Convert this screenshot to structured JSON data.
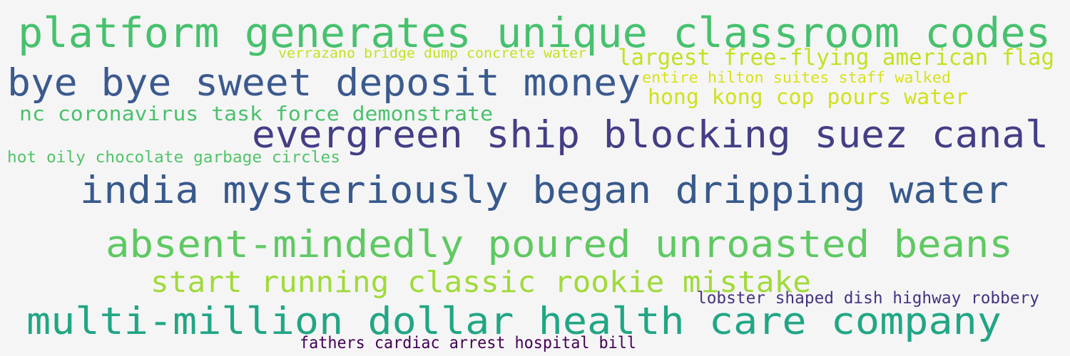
{
  "phrases": [
    {
      "text": "platform generates unique classroom codes",
      "color": "#47c16e"
    },
    {
      "text": "verrazano bridge dump concrete water",
      "color": "#c5e021"
    },
    {
      "text": "largest free-flying american flag",
      "color": "#c5e021"
    },
    {
      "text": "bye bye sweet deposit money",
      "color": "#3b5a8e"
    },
    {
      "text": "entire hilton suites staff walked",
      "color": "#d8e219"
    },
    {
      "text": "hong kong cop pours water",
      "color": "#d0e11c"
    },
    {
      "text": "nc coronavirus task force demonstrate",
      "color": "#4ac16d"
    },
    {
      "text": "evergreen ship blocking suez canal",
      "color": "#433e85"
    },
    {
      "text": "hot oily chocolate garbage circles",
      "color": "#50c46a"
    },
    {
      "text": "india mysteriously began dripping water",
      "color": "#38598c"
    },
    {
      "text": "absent-mindedly poured unroasted beans",
      "color": "#5ec962"
    },
    {
      "text": "start running classic rookie mistake",
      "color": "#a0da39"
    },
    {
      "text": "lobster shaped dish highway robbery",
      "color": "#46337f"
    },
    {
      "text": "multi-million dollar health care company",
      "color": "#21a685"
    },
    {
      "text": "fathers cardiac arrest hospital bill",
      "color": "#440154"
    }
  ]
}
